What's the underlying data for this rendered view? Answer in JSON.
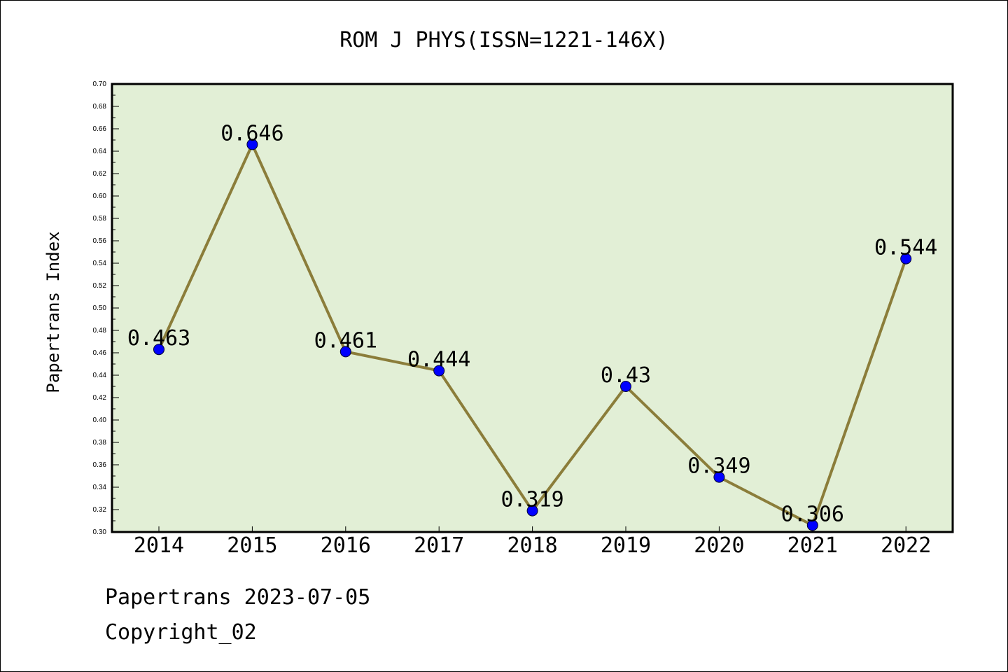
{
  "chart_data": {
    "type": "line",
    "title": "ROM J PHYS(ISSN=1221-146X)",
    "xlabel": "",
    "ylabel": "Papertrans Index",
    "categories": [
      "2014",
      "2015",
      "2016",
      "2017",
      "2018",
      "2019",
      "2020",
      "2021",
      "2022"
    ],
    "values": [
      0.463,
      0.646,
      0.461,
      0.444,
      0.319,
      0.43,
      0.349,
      0.306,
      0.544
    ],
    "data_labels": [
      "0.463",
      "0.646",
      "0.461",
      "0.444",
      "0.319",
      "0.43",
      "0.349",
      "0.306",
      "0.544"
    ],
    "ylim": [
      0.3,
      0.7
    ],
    "yticks": [
      "0.30",
      "0.32",
      "0.34",
      "0.36",
      "0.38",
      "0.40",
      "0.42",
      "0.44",
      "0.46",
      "0.48",
      "0.50",
      "0.52",
      "0.54",
      "0.56",
      "0.58",
      "0.60",
      "0.62",
      "0.64",
      "0.66",
      "0.68",
      "0.70"
    ],
    "grid": false,
    "colors": {
      "line": "#8B7D3A",
      "marker": "#0000FF",
      "plot_background": "#E2EFD6"
    }
  },
  "footer": {
    "line1": "Papertrans 2023-07-05",
    "line2": "Copyright_02"
  }
}
